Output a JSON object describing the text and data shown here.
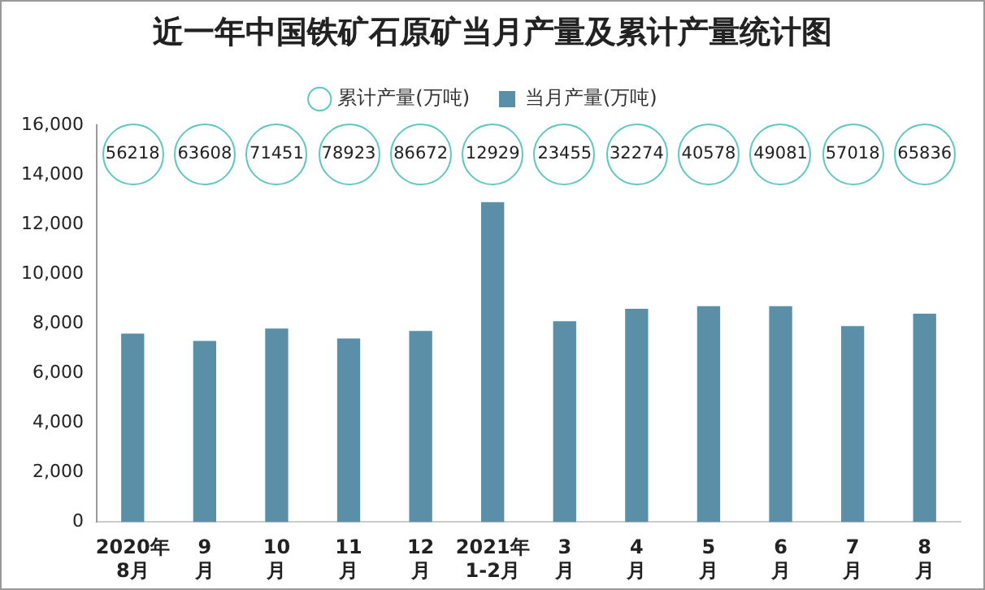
{
  "chart_data": {
    "type": "bar",
    "title": "近一年中国铁矿石原矿当月产量及累计产量统计图",
    "categories": [
      "2020年\n8月",
      "9\n月",
      "10\n月",
      "11\n月",
      "12\n月",
      "2021年\n1-2月",
      "3\n月",
      "4\n月",
      "5\n月",
      "6\n月",
      "7\n月",
      "8\n月"
    ],
    "series": [
      {
        "name": "当月产量(万吨)",
        "color": "#5b8fa8",
        "values": [
          7600,
          7300,
          7800,
          7400,
          7700,
          12900,
          8100,
          8600,
          8700,
          8700,
          7900,
          8400
        ]
      },
      {
        "name": "累计产量(万吨)",
        "type": "scatter",
        "color": "#5fc7c2",
        "values": [
          null,
          null,
          null,
          null,
          null,
          null,
          null,
          null,
          null,
          null,
          null,
          null
        ],
        "value_labels": [
          "56218",
          "63608",
          "71451",
          "78923",
          "86672",
          "12929",
          "23455",
          "32274",
          "40578",
          "49081",
          "57018",
          "65836"
        ]
      }
    ],
    "ylim": [
      0,
      16000
    ],
    "yticks": [
      {
        "value": 0,
        "label": "0"
      },
      {
        "value": 2000,
        "label": "2,000"
      },
      {
        "value": 4000,
        "label": "4,000"
      },
      {
        "value": 6000,
        "label": "6,000"
      },
      {
        "value": 8000,
        "label": "8,000"
      },
      {
        "value": 10000,
        "label": "10,000"
      },
      {
        "value": 12000,
        "label": "12,000"
      },
      {
        "value": 14000,
        "label": "14,000"
      },
      {
        "value": 16000,
        "label": "16,000"
      }
    ],
    "legend": "top"
  }
}
